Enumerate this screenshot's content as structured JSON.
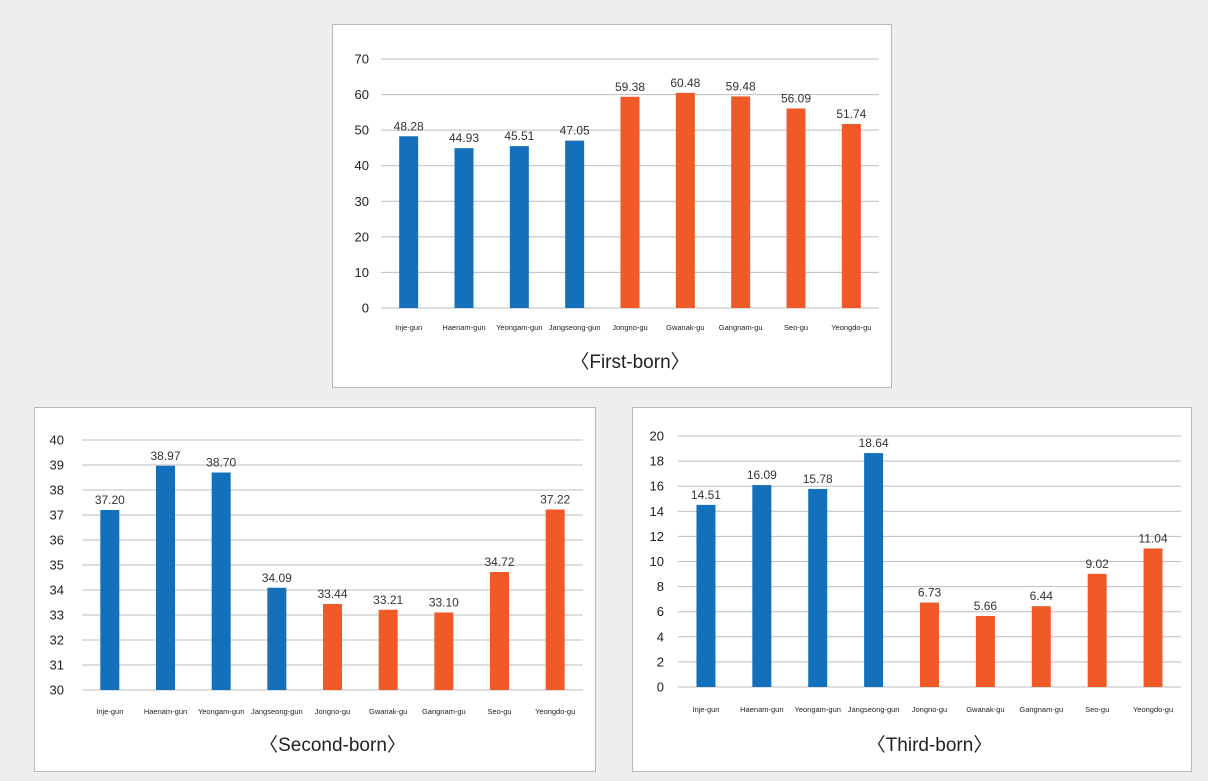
{
  "colors": {
    "blue": "#1570bb",
    "orange": "#f05a28"
  },
  "chart_data": [
    {
      "type": "bar",
      "title": "〈First-born〉",
      "categories": [
        "Inje-gun",
        "Haenam-gun",
        "Yeongam-gun",
        "Jangseong-gun",
        "Jongno-gu",
        "Gwanak-gu",
        "Gangnam-gu",
        "Seo-gu",
        "Yeongdo-gu"
      ],
      "values": [
        48.28,
        44.93,
        45.51,
        47.05,
        59.38,
        60.48,
        59.48,
        56.09,
        51.74
      ],
      "value_labels": [
        "48.28",
        "44.93",
        "45.51",
        "47.05",
        "59.38",
        "60.48",
        "59.48",
        "56.09",
        "51.74"
      ],
      "bar_colors": [
        "blue",
        "blue",
        "blue",
        "blue",
        "orange",
        "orange",
        "orange",
        "orange",
        "orange"
      ],
      "ylim": [
        0,
        70
      ],
      "yticks": [
        "0",
        "10",
        "20",
        "30",
        "40",
        "50",
        "60",
        "70"
      ],
      "grid": true
    },
    {
      "type": "bar",
      "title": "〈Second-born〉",
      "categories": [
        "Inje-gun",
        "Haenam-gun",
        "Yeongam-gun",
        "Jangseong-gun",
        "Jongno-gu",
        "Gwanak-gu",
        "Gangnam-gu",
        "Seo-gu",
        "Yeongdo-gu"
      ],
      "values": [
        37.2,
        38.97,
        38.7,
        34.09,
        33.44,
        33.21,
        33.1,
        34.72,
        37.22
      ],
      "value_labels": [
        "37.20",
        "38.97",
        "38.70",
        "34.09",
        "33.44",
        "33.21",
        "33.10",
        "34.72",
        "37.22"
      ],
      "bar_colors": [
        "blue",
        "blue",
        "blue",
        "blue",
        "orange",
        "orange",
        "orange",
        "orange",
        "orange"
      ],
      "ylim": [
        30,
        40
      ],
      "yticks": [
        "30",
        "31",
        "32",
        "33",
        "34",
        "35",
        "36",
        "37",
        "38",
        "39",
        "40"
      ],
      "grid": true
    },
    {
      "type": "bar",
      "title": "〈Third-born〉",
      "categories": [
        "Inje-gun",
        "Haenam-gun",
        "Yeongam-gun",
        "Jangseong-gun",
        "Jongno-gu",
        "Gwanak-gu",
        "Gangnam-gu",
        "Seo-gu",
        "Yeongdo-gu"
      ],
      "values": [
        14.51,
        16.09,
        15.78,
        18.64,
        6.73,
        5.66,
        6.44,
        9.02,
        11.04
      ],
      "value_labels": [
        "14.51",
        "16.09",
        "15.78",
        "18.64",
        "6.73",
        "5.66",
        "6.44",
        "9.02",
        "11.04"
      ],
      "bar_colors": [
        "blue",
        "blue",
        "blue",
        "blue",
        "orange",
        "orange",
        "orange",
        "orange",
        "orange"
      ],
      "ylim": [
        0,
        20
      ],
      "yticks": [
        "0",
        "2",
        "4",
        "6",
        "8",
        "10",
        "12",
        "14",
        "16",
        "18",
        "20"
      ],
      "grid": true
    }
  ]
}
